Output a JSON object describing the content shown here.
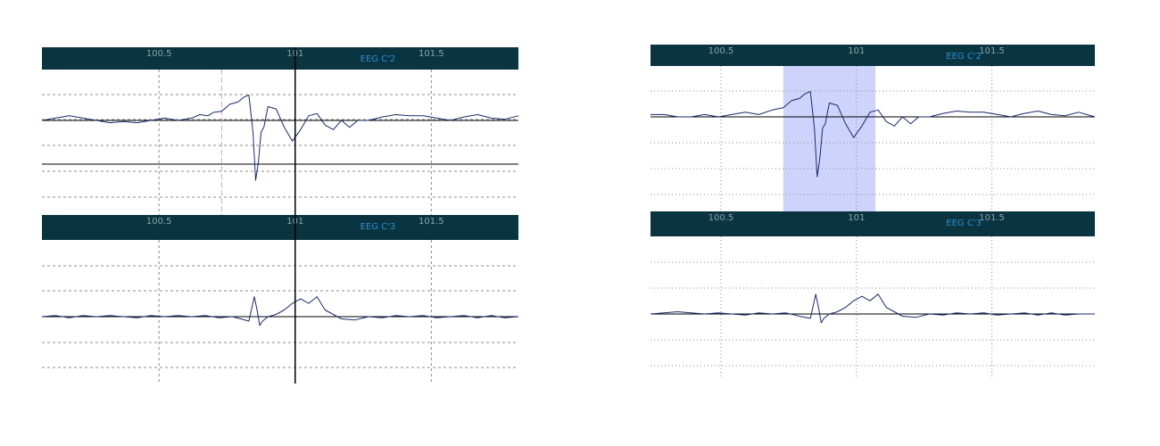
{
  "theme": {
    "header_bg": "#0a3440",
    "trace_color": "#1a2a6a",
    "grid_color": "#8c8c8c",
    "baseline_color": "#000000",
    "cursor_color": "#000000",
    "marker_color": "#e8a0a8",
    "selection_fill": "#cdd3fb",
    "tick_label_color": "#8aa4ad",
    "channel_label_color": "#2a8fd0"
  },
  "chart_data": [
    {
      "type": "line",
      "panel": "left-top",
      "channel": "EEG C'2",
      "x_ticks": [
        "100.5",
        "101",
        "101.5"
      ],
      "x_tick_values": [
        100.5,
        101,
        101.5
      ],
      "xlim": [
        100.07,
        101.82
      ],
      "ylim": [
        -3,
        3
      ],
      "grid": "dashed",
      "cursor_x": 101,
      "marker_x": 100.73,
      "second_baseline_y": -1.75,
      "series": [
        {
          "x": [
            100.07,
            100.12,
            100.17,
            100.22,
            100.27,
            100.32,
            100.37,
            100.42,
            100.47,
            100.52,
            100.57,
            100.62,
            100.65,
            100.68,
            100.7,
            100.73,
            100.76,
            100.79,
            100.81,
            100.83,
            100.845,
            100.855,
            100.865,
            100.875,
            100.885,
            100.9,
            100.93,
            100.96,
            100.99,
            101.02,
            101.05,
            101.08,
            101.11,
            101.14,
            101.17,
            101.2,
            101.23,
            101.27,
            101.32,
            101.37,
            101.42,
            101.47,
            101.52,
            101.57,
            101.62,
            101.67,
            101.72,
            101.77,
            101.82
          ],
          "values": [
            0,
            0.1,
            0.2,
            0.1,
            0,
            -0.1,
            -0.05,
            -0.1,
            0,
            0.1,
            0,
            0.1,
            0.25,
            0.2,
            0.35,
            0.4,
            0.7,
            0.8,
            1,
            1.1,
            -0.5,
            -2.6,
            -1.8,
            -0.5,
            -0.3,
            0.6,
            0.5,
            -0.3,
            -0.9,
            -0.4,
            0.2,
            0.3,
            -0.2,
            -0.4,
            0,
            -0.3,
            0,
            0,
            0.15,
            0.25,
            0.2,
            0.2,
            0.1,
            0,
            0.15,
            0.25,
            0.1,
            0.05,
            0.2
          ]
        }
      ]
    },
    {
      "type": "line",
      "panel": "left-bottom",
      "channel": "EEG C'3",
      "x_ticks": [
        "100.5",
        "101",
        "101.5"
      ],
      "x_tick_values": [
        100.5,
        101,
        101.5
      ],
      "xlim": [
        100.07,
        101.82
      ],
      "ylim": [
        -2.5,
        3.5
      ],
      "grid": "dashed",
      "cursor_x": 101,
      "series": [
        {
          "x": [
            100.07,
            100.12,
            100.17,
            100.22,
            100.27,
            100.32,
            100.37,
            100.42,
            100.47,
            100.52,
            100.57,
            100.62,
            100.67,
            100.72,
            100.77,
            100.8,
            100.83,
            100.85,
            100.86,
            100.87,
            100.88,
            100.9,
            100.93,
            100.96,
            100.99,
            101.02,
            101.05,
            101.08,
            101.11,
            101.14,
            101.17,
            101.22,
            101.27,
            101.32,
            101.37,
            101.42,
            101.47,
            101.52,
            101.57,
            101.62,
            101.67,
            101.72,
            101.77,
            101.82
          ],
          "values": [
            0,
            0.05,
            -0.05,
            0.05,
            0,
            0.05,
            0,
            -0.05,
            0.05,
            0,
            0.05,
            0,
            0.05,
            -0.05,
            0,
            -0.1,
            -0.2,
            0.9,
            0.3,
            -0.4,
            -0.2,
            0,
            0.1,
            0.3,
            0.6,
            0.8,
            0.6,
            0.9,
            0.3,
            0.1,
            -0.1,
            -0.15,
            0,
            -0.05,
            0.05,
            0,
            0.05,
            -0.05,
            0,
            0.05,
            -0.05,
            0.05,
            -0.05,
            0
          ]
        }
      ]
    },
    {
      "type": "line",
      "panel": "right-top",
      "channel": "EEG C'2",
      "x_ticks": [
        "100.5",
        "101",
        "101.5"
      ],
      "x_tick_values": [
        100.5,
        101,
        101.5
      ],
      "xlim": [
        100.24,
        101.88
      ],
      "ylim": [
        -3,
        3
      ],
      "grid": "dotted",
      "selection": [
        100.73,
        101.07
      ],
      "series": [
        {
          "x": [
            100.24,
            100.29,
            100.34,
            100.39,
            100.44,
            100.49,
            100.54,
            100.59,
            100.64,
            100.69,
            100.73,
            100.76,
            100.79,
            100.81,
            100.83,
            100.845,
            100.855,
            100.865,
            100.875,
            100.885,
            100.9,
            100.93,
            100.96,
            100.99,
            101.02,
            101.05,
            101.08,
            101.11,
            101.14,
            101.17,
            101.2,
            101.23,
            101.27,
            101.32,
            101.37,
            101.42,
            101.47,
            101.52,
            101.57,
            101.62,
            101.67,
            101.72,
            101.77,
            101.82,
            101.88
          ],
          "values": [
            0.1,
            0.1,
            0,
            0,
            0.1,
            0,
            0.1,
            0.2,
            0.1,
            0.3,
            0.4,
            0.7,
            0.8,
            1,
            1.1,
            -0.5,
            -2.6,
            -1.8,
            -0.5,
            -0.3,
            0.6,
            0.5,
            -0.3,
            -0.9,
            -0.4,
            0.2,
            0.3,
            -0.2,
            -0.4,
            0,
            -0.3,
            0,
            0,
            0.15,
            0.25,
            0.2,
            0.2,
            0.1,
            0,
            0.15,
            0.25,
            0.1,
            0.05,
            0.2,
            0
          ]
        }
      ]
    },
    {
      "type": "line",
      "panel": "right-bottom",
      "channel": "EEG C'3",
      "x_ticks": [
        "100.5",
        "101",
        "101.5"
      ],
      "x_tick_values": [
        100.5,
        101,
        101.5
      ],
      "xlim": [
        100.24,
        101.88
      ],
      "ylim": [
        -2.5,
        3.5
      ],
      "grid": "dotted",
      "series": [
        {
          "x": [
            100.24,
            100.29,
            100.34,
            100.39,
            100.44,
            100.49,
            100.54,
            100.59,
            100.64,
            100.69,
            100.74,
            100.79,
            100.83,
            100.85,
            100.86,
            100.87,
            100.88,
            100.9,
            100.93,
            100.96,
            100.99,
            101.02,
            101.05,
            101.08,
            101.11,
            101.14,
            101.17,
            101.22,
            101.27,
            101.32,
            101.37,
            101.42,
            101.47,
            101.52,
            101.57,
            101.62,
            101.67,
            101.72,
            101.77,
            101.82,
            101.88
          ],
          "values": [
            0,
            0.05,
            0.1,
            0.05,
            0,
            0.05,
            0,
            -0.05,
            0.05,
            0,
            0.05,
            -0.1,
            -0.2,
            0.9,
            0.3,
            -0.4,
            -0.2,
            0,
            0.1,
            0.3,
            0.6,
            0.8,
            0.6,
            0.9,
            0.3,
            0.1,
            -0.1,
            -0.15,
            0,
            -0.05,
            0.05,
            0,
            0.05,
            -0.05,
            0,
            0.05,
            -0.05,
            0.05,
            -0.05,
            0,
            0
          ]
        }
      ]
    }
  ]
}
